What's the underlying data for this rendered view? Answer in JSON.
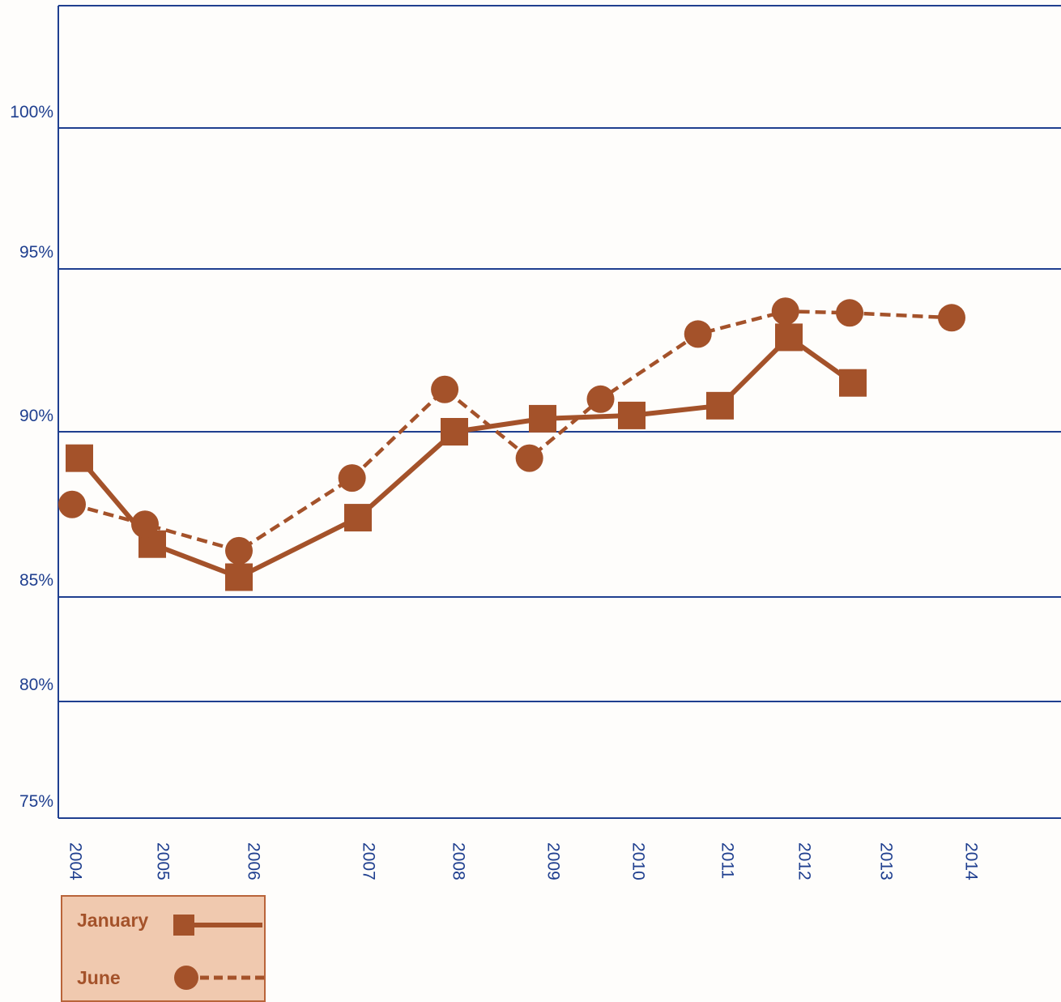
{
  "chart_data": {
    "type": "line",
    "y_ticks": [
      "75%",
      "80%",
      "85%",
      "90%",
      "95%",
      "100%"
    ],
    "x_labels": [
      "2004",
      "2005",
      "2006",
      "2007",
      "2008",
      "2009",
      "2010",
      "2011",
      "2012",
      "2013",
      "2014"
    ],
    "grid": true,
    "legend_position": "bottom-left",
    "colors": {
      "series": "#a4522a",
      "grid": "#1f3f8f",
      "legend_bg": "#f0c9af"
    },
    "series": [
      {
        "name": "January",
        "style": "solid",
        "marker": "square",
        "points": [
          {
            "x": 2004.0,
            "y": 89.2
          },
          {
            "x": 2005.0,
            "y": 86.6
          },
          {
            "x": 2006.0,
            "y": 85.6
          },
          {
            "x": 2007.0,
            "y": 87.4
          },
          {
            "x": 2008.0,
            "y": 90.0
          },
          {
            "x": 2009.0,
            "y": 90.4
          },
          {
            "x": 2010.0,
            "y": 90.5
          },
          {
            "x": 2011.0,
            "y": 90.8
          },
          {
            "x": 2012.0,
            "y": 92.9
          },
          {
            "x": 2013.0,
            "y": 91.5
          }
        ]
      },
      {
        "name": "June",
        "style": "dashed",
        "marker": "circle",
        "points": [
          {
            "x": 2003.9,
            "y": 87.8
          },
          {
            "x": 2004.9,
            "y": 87.2
          },
          {
            "x": 2006.0,
            "y": 86.4
          },
          {
            "x": 2006.95,
            "y": 88.6
          },
          {
            "x": 2007.9,
            "y": 91.3
          },
          {
            "x": 2008.85,
            "y": 89.2
          },
          {
            "x": 2009.65,
            "y": 91.0
          },
          {
            "x": 2010.75,
            "y": 93.0
          },
          {
            "x": 2011.95,
            "y": 93.7
          },
          {
            "x": 2012.95,
            "y": 93.65
          },
          {
            "x": 2014.0,
            "y": 93.5
          }
        ]
      }
    ]
  }
}
